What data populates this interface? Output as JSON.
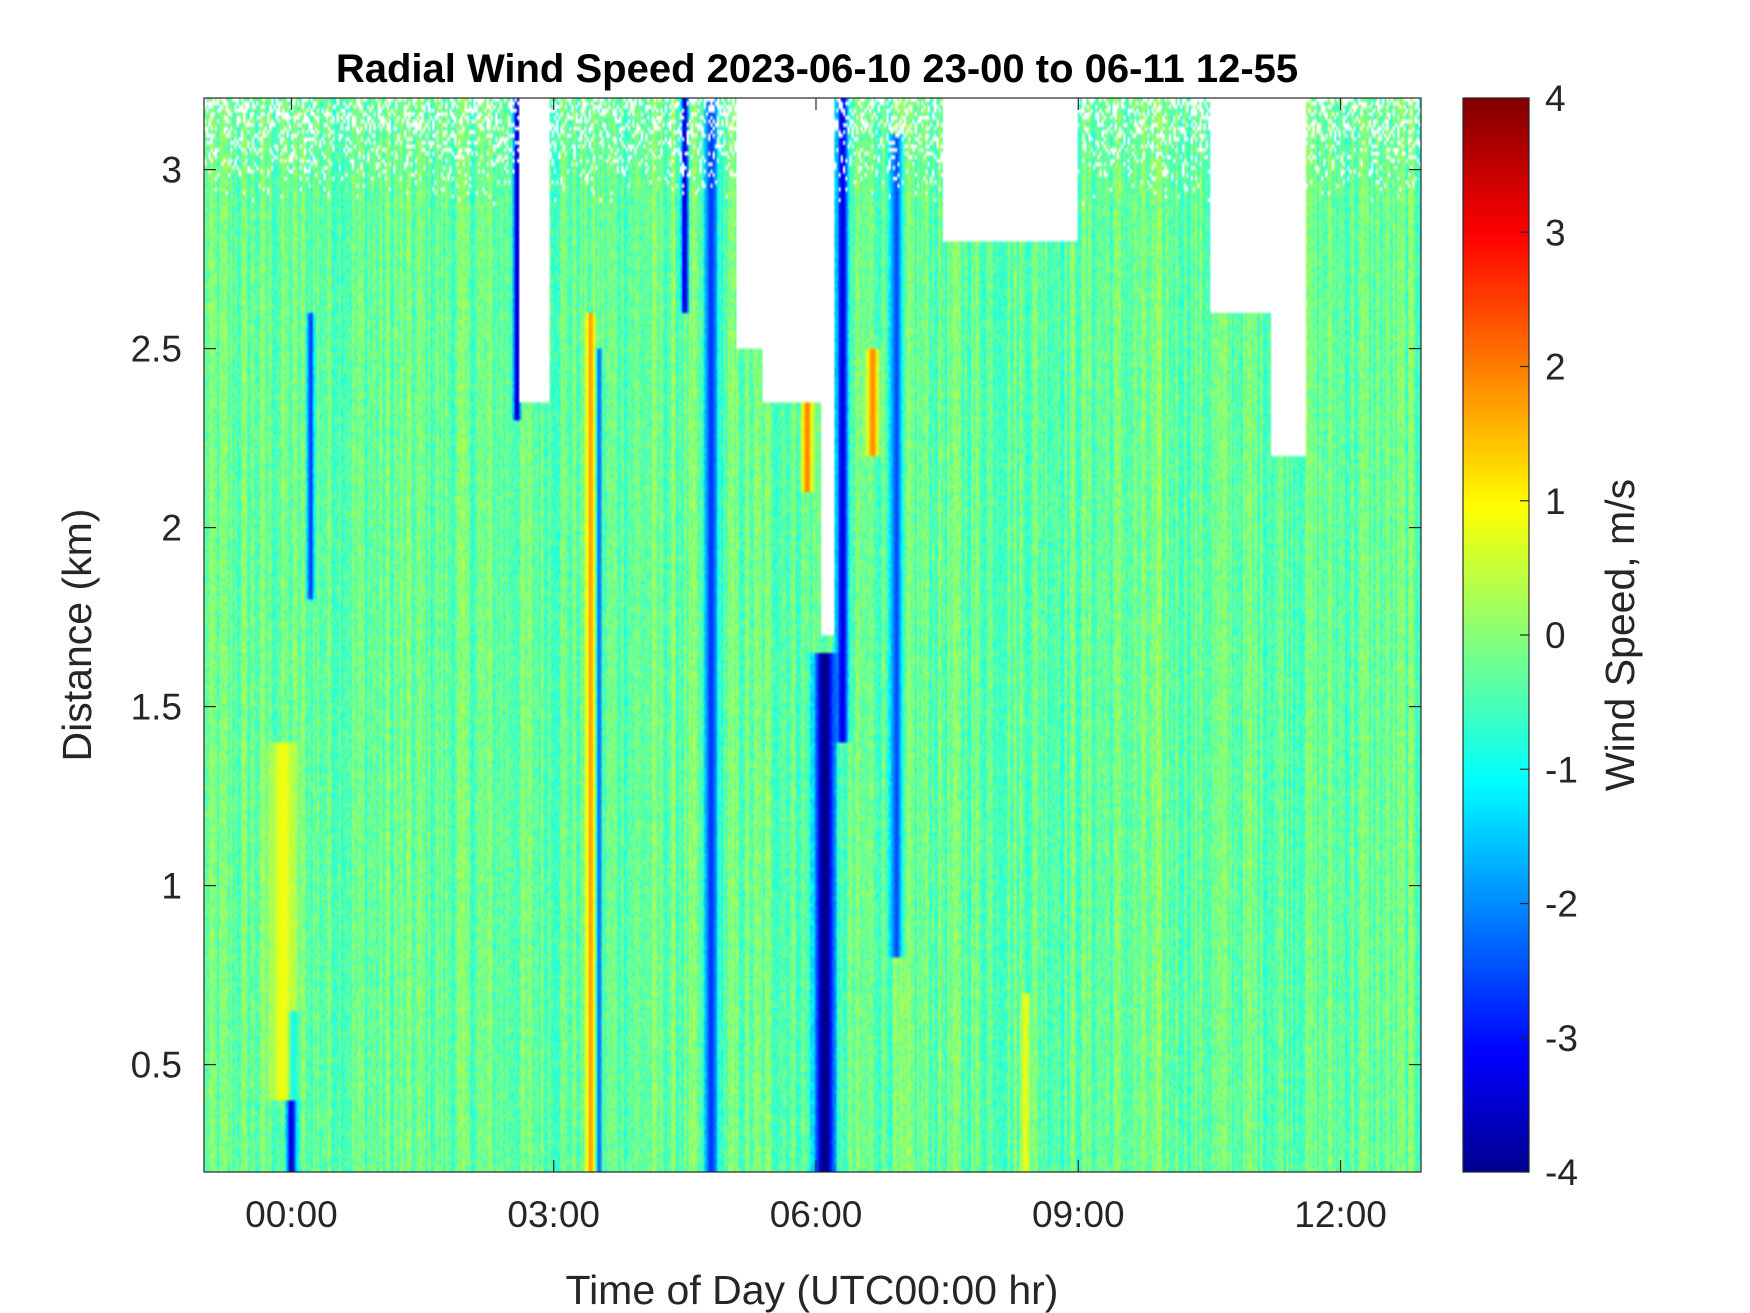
{
  "chart_data": {
    "type": "heatmap",
    "title": "Radial Wind Speed 2023-06-10 23-00 to 06-11 12-55",
    "xlabel": "Time of Day (UTC00:00 hr)",
    "ylabel": "Distance (km)",
    "colorbar_label": "Wind Speed, m/s",
    "colormap": "jet",
    "x_unit": "hours relative to 2023-06-11 00:00 UTC",
    "xlim": [
      -1.0,
      12.92
    ],
    "ylim": [
      0.2,
      3.2
    ],
    "clim": [
      -4,
      4
    ],
    "x_ticks": [
      0,
      3,
      6,
      9,
      12
    ],
    "x_tick_labels": [
      "00:00",
      "03:00",
      "06:00",
      "09:00",
      "12:00"
    ],
    "y_ticks": [
      0.5,
      1,
      1.5,
      2,
      2.5,
      3
    ],
    "y_tick_labels": [
      "0.5",
      "1",
      "1.5",
      "2",
      "2.5",
      "3"
    ],
    "colorbar_ticks": [
      -4,
      -3,
      -2,
      -1,
      0,
      1,
      2,
      3,
      4
    ],
    "colorbar_tick_labels": [
      "-4",
      "-3",
      "-2",
      "-1",
      "0",
      "1",
      "2",
      "3",
      "4"
    ],
    "background_value": -0.2,
    "features": [
      {
        "x": 0.0,
        "width": 0.06,
        "value": -3.3,
        "y_from": 0.2,
        "y_to": 0.65
      },
      {
        "x": -0.1,
        "width": 0.15,
        "value": 0.9,
        "y_from": 0.4,
        "y_to": 1.4
      },
      {
        "x": 0.22,
        "width": 0.04,
        "value": -2.6,
        "y_from": 1.8,
        "y_to": 2.6
      },
      {
        "x": 2.58,
        "width": 0.04,
        "value": -3.6,
        "y_from": 2.3,
        "y_to": 3.2
      },
      {
        "x": 3.42,
        "width": 0.05,
        "value": 1.8,
        "y_from": 0.2,
        "y_to": 2.6
      },
      {
        "x": 3.52,
        "width": 0.03,
        "value": -2.3,
        "y_from": 0.2,
        "y_to": 2.5
      },
      {
        "x": 4.5,
        "width": 0.04,
        "value": -3.5,
        "y_from": 2.6,
        "y_to": 3.2
      },
      {
        "x": 4.8,
        "width": 0.08,
        "value": -2.6,
        "y_from": 0.2,
        "y_to": 3.2
      },
      {
        "x": 5.9,
        "width": 0.06,
        "value": 2.0,
        "y_from": 2.1,
        "y_to": 2.35
      },
      {
        "x": 6.1,
        "width": 0.12,
        "value": -4.0,
        "y_from": 0.2,
        "y_to": 1.65
      },
      {
        "x": 6.3,
        "width": 0.07,
        "value": -3.2,
        "y_from": 1.4,
        "y_to": 3.2
      },
      {
        "x": 6.65,
        "width": 0.07,
        "value": 1.9,
        "y_from": 2.2,
        "y_to": 2.5
      },
      {
        "x": 6.92,
        "width": 0.07,
        "value": -2.4,
        "y_from": 0.8,
        "y_to": 3.1
      },
      {
        "x": 8.4,
        "width": 0.05,
        "value": 0.9,
        "y_from": 0.2,
        "y_to": 0.7
      }
    ],
    "no_data_regions": [
      {
        "x_from": 2.6,
        "x_to": 2.95,
        "y_from": 2.35,
        "y_to": 3.2
      },
      {
        "x_from": 5.1,
        "x_to": 5.4,
        "y_from": 2.5,
        "y_to": 3.2
      },
      {
        "x_from": 5.4,
        "x_to": 6.05,
        "y_from": 2.35,
        "y_to": 3.2
      },
      {
        "x_from": 6.05,
        "x_to": 6.2,
        "y_from": 1.7,
        "y_to": 3.2
      },
      {
        "x_from": 7.45,
        "x_to": 9.0,
        "y_from": 2.8,
        "y_to": 3.2
      },
      {
        "x_from": 10.5,
        "x_to": 11.2,
        "y_from": 2.6,
        "y_to": 3.2
      },
      {
        "x_from": 11.2,
        "x_to": 11.6,
        "y_from": 2.2,
        "y_to": 3.2
      }
    ]
  }
}
